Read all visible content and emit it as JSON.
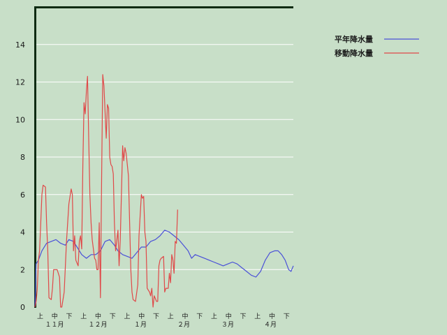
{
  "chart_data": {
    "type": "line",
    "ylim": [
      0,
      16
    ],
    "yticks": [
      "0",
      "2",
      "4",
      "6",
      "8",
      "10",
      "12",
      "14"
    ],
    "grid": true,
    "legend_position": "top-right",
    "x_dekads": [
      "上",
      "中",
      "下",
      "上",
      "中",
      "下",
      "上",
      "中",
      "下",
      "上",
      "中",
      "下",
      "上",
      "中",
      "下",
      "上",
      "中",
      "下"
    ],
    "x_months": [
      "１１月",
      "１２月",
      "１月",
      "２月",
      "３月",
      "４月"
    ],
    "colors": {
      "normal": "#4a50d8",
      "moving": "#e04848"
    },
    "series": [
      {
        "name": "平年降水量",
        "key": "normal",
        "points": [
          [
            0,
            0.0
          ],
          [
            1,
            2.3
          ],
          [
            3,
            2.5
          ],
          [
            6,
            3.0
          ],
          [
            10,
            3.4
          ],
          [
            14,
            3.5
          ],
          [
            18,
            3.6
          ],
          [
            22,
            3.4
          ],
          [
            26,
            3.3
          ],
          [
            29,
            3.6
          ],
          [
            33,
            3.5
          ],
          [
            36,
            3.2
          ],
          [
            40,
            2.8
          ],
          [
            44,
            2.6
          ],
          [
            48,
            2.8
          ],
          [
            52,
            2.8
          ],
          [
            56,
            3.0
          ],
          [
            60,
            3.5
          ],
          [
            64,
            3.6
          ],
          [
            68,
            3.3
          ],
          [
            71,
            3.0
          ],
          [
            75,
            2.8
          ],
          [
            79,
            2.7
          ],
          [
            83,
            2.6
          ],
          [
            87,
            2.9
          ],
          [
            91,
            3.2
          ],
          [
            95,
            3.2
          ],
          [
            99,
            3.5
          ],
          [
            103,
            3.6
          ],
          [
            107,
            3.8
          ],
          [
            111,
            4.1
          ],
          [
            115,
            4.0
          ],
          [
            119,
            3.8
          ],
          [
            123,
            3.6
          ],
          [
            127,
            3.3
          ],
          [
            131,
            3.0
          ],
          [
            134,
            2.6
          ],
          [
            137,
            2.8
          ],
          [
            141,
            2.7
          ],
          [
            145,
            2.6
          ],
          [
            149,
            2.5
          ],
          [
            153,
            2.4
          ],
          [
            157,
            2.3
          ],
          [
            161,
            2.2
          ],
          [
            165,
            2.3
          ],
          [
            169,
            2.4
          ],
          [
            173,
            2.3
          ],
          [
            177,
            2.1
          ],
          [
            181,
            1.9
          ],
          [
            185,
            1.7
          ],
          [
            189,
            1.6
          ],
          [
            193,
            1.9
          ],
          [
            197,
            2.5
          ],
          [
            201,
            2.9
          ],
          [
            205,
            3.0
          ],
          [
            208,
            3.0
          ],
          [
            211,
            2.8
          ],
          [
            214,
            2.5
          ],
          [
            217,
            2.0
          ],
          [
            219,
            1.9
          ],
          [
            221,
            2.2
          ]
        ]
      },
      {
        "name": "移動降水量",
        "key": "moving",
        "points": [
          [
            0,
            0.0
          ],
          [
            1,
            0.3
          ],
          [
            2,
            0.9
          ],
          [
            3,
            2.5
          ],
          [
            4,
            3.0
          ],
          [
            6,
            6.0
          ],
          [
            7,
            6.5
          ],
          [
            9,
            6.4
          ],
          [
            10,
            4.5
          ],
          [
            11,
            3.0
          ],
          [
            12,
            0.5
          ],
          [
            14,
            0.4
          ],
          [
            15,
            1.0
          ],
          [
            16,
            2.0
          ],
          [
            19,
            2.0
          ],
          [
            21,
            1.6
          ],
          [
            22,
            0.0
          ],
          [
            23,
            0.0
          ],
          [
            25,
            0.8
          ],
          [
            27,
            3.5
          ],
          [
            29,
            5.5
          ],
          [
            31,
            6.3
          ],
          [
            32,
            6.0
          ],
          [
            33,
            3.0
          ],
          [
            34,
            3.8
          ],
          [
            35,
            2.5
          ],
          [
            37,
            2.2
          ],
          [
            38,
            3.5
          ],
          [
            39,
            3.8
          ],
          [
            40,
            3.1
          ],
          [
            41,
            7.5
          ],
          [
            42,
            10.9
          ],
          [
            43,
            10.3
          ],
          [
            44,
            11.5
          ],
          [
            45,
            12.3
          ],
          [
            46,
            9.0
          ],
          [
            47,
            6.0
          ],
          [
            48,
            4.5
          ],
          [
            49,
            3.6
          ],
          [
            51,
            2.6
          ],
          [
            52,
            2.5
          ],
          [
            53,
            2.0
          ],
          [
            54,
            2.0
          ],
          [
            55,
            4.5
          ],
          [
            56,
            0.5
          ],
          [
            57,
            6.5
          ],
          [
            58,
            12.4
          ],
          [
            59,
            11.8
          ],
          [
            61,
            9.0
          ],
          [
            62,
            10.8
          ],
          [
            63,
            10.6
          ],
          [
            64,
            8.0
          ],
          [
            65,
            7.6
          ],
          [
            66,
            7.5
          ],
          [
            67,
            7.1
          ],
          [
            68,
            4.5
          ],
          [
            69,
            3.0
          ],
          [
            71,
            4.1
          ],
          [
            72,
            2.2
          ],
          [
            73,
            3.6
          ],
          [
            75,
            8.6
          ],
          [
            76,
            7.8
          ],
          [
            77,
            8.5
          ],
          [
            78,
            8.2
          ],
          [
            80,
            7.0
          ],
          [
            81,
            4.5
          ],
          [
            82,
            2.0
          ],
          [
            83,
            0.8
          ],
          [
            84,
            0.4
          ],
          [
            86,
            0.3
          ],
          [
            88,
            1.2
          ],
          [
            89,
            3.8
          ],
          [
            91,
            6.0
          ],
          [
            92,
            5.8
          ],
          [
            93,
            5.9
          ],
          [
            94,
            4.0
          ],
          [
            95,
            3.5
          ],
          [
            96,
            1.0
          ],
          [
            98,
            0.8
          ],
          [
            99,
            0.6
          ],
          [
            100,
            1.0
          ],
          [
            101,
            0.0
          ],
          [
            102,
            0.6
          ],
          [
            104,
            0.3
          ],
          [
            105,
            0.3
          ],
          [
            106,
            2.2
          ],
          [
            107,
            2.5
          ],
          [
            108,
            2.6
          ],
          [
            110,
            2.7
          ],
          [
            111,
            0.8
          ],
          [
            112,
            1.0
          ],
          [
            114,
            1.0
          ],
          [
            115,
            1.8
          ],
          [
            116,
            1.3
          ],
          [
            117,
            2.8
          ],
          [
            118,
            2.5
          ],
          [
            119,
            1.8
          ],
          [
            120,
            3.5
          ],
          [
            121,
            3.4
          ],
          [
            122,
            5.2
          ]
        ]
      }
    ]
  }
}
